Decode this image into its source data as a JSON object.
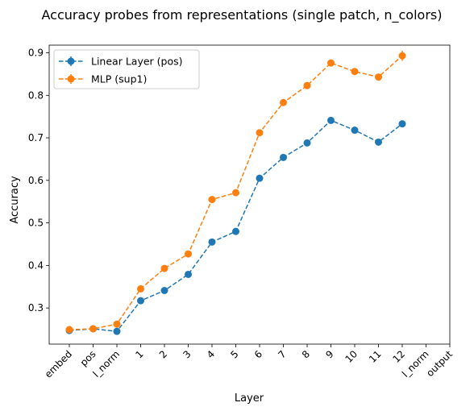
{
  "chart_data": {
    "type": "line",
    "title": "Accuracy probes from representations (single patch, n_colors)",
    "xlabel": "Layer",
    "ylabel": "Accuracy",
    "categories": [
      "embed",
      "pos",
      "l_norm",
      "1",
      "2",
      "3",
      "4",
      "5",
      "6",
      "7",
      "8",
      "9",
      "10",
      "11",
      "12",
      "l_norm",
      "output"
    ],
    "ylim": [
      0.215,
      0.918
    ],
    "yticks": [
      0.3,
      0.4,
      0.5,
      0.6,
      0.7,
      0.8,
      0.9
    ],
    "grid": false,
    "legend_position": "top-left",
    "series": [
      {
        "name": "Linear Layer (pos)",
        "color": "#1f77b4",
        "values": [
          0.247,
          0.251,
          0.245,
          0.317,
          0.341,
          0.379,
          0.455,
          0.48,
          0.605,
          0.654,
          0.688,
          0.741,
          0.718,
          0.69,
          0.733,
          null,
          null
        ],
        "errors": [
          0.006,
          0.005,
          0.006,
          0.006,
          0.005,
          0.006,
          0.005,
          0.006,
          0.006,
          0.005,
          0.006,
          0.006,
          0.006,
          0.005,
          0.006,
          null,
          null
        ]
      },
      {
        "name": "MLP (sup1)",
        "color": "#ff7f0e",
        "values": [
          0.249,
          0.251,
          0.262,
          0.345,
          0.393,
          0.427,
          0.555,
          0.571,
          0.712,
          0.783,
          0.823,
          0.876,
          0.856,
          0.843,
          0.893,
          null,
          null
        ],
        "errors": [
          0.006,
          0.005,
          0.006,
          0.006,
          0.006,
          0.006,
          0.005,
          0.006,
          0.006,
          0.006,
          0.006,
          0.006,
          0.006,
          0.006,
          0.012,
          null,
          null
        ]
      }
    ]
  }
}
